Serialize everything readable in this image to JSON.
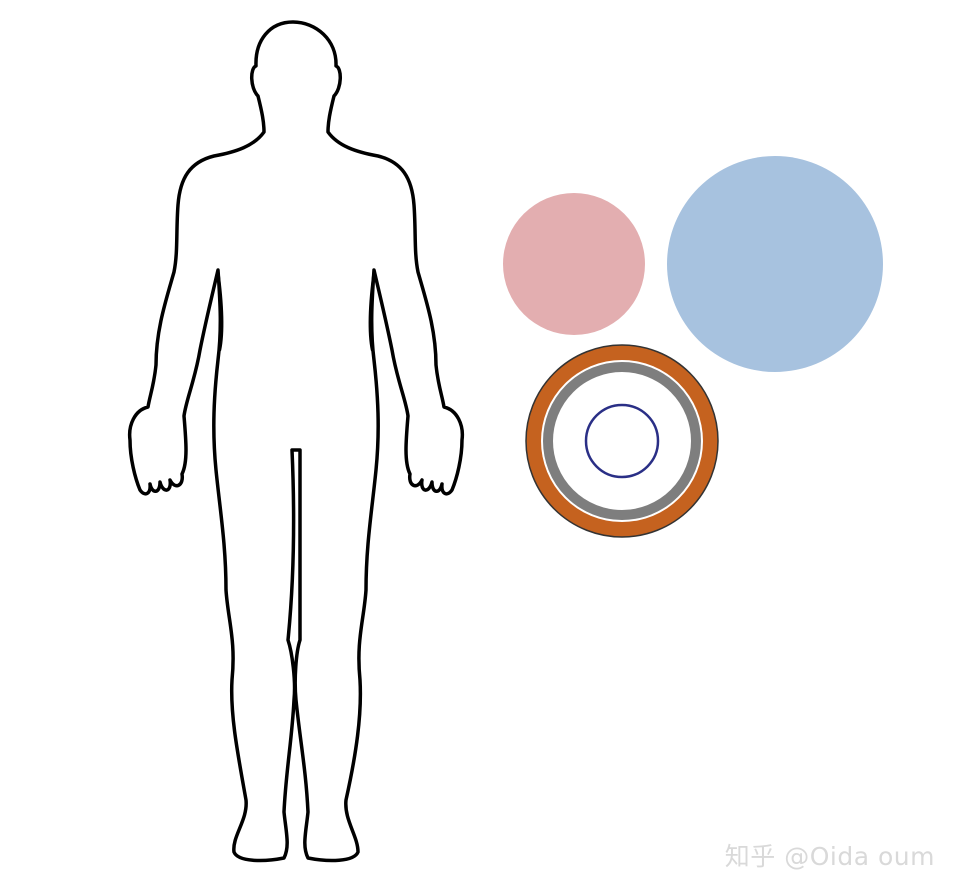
{
  "watermark": {
    "text": "知乎 @Oida oum"
  },
  "figure": {
    "outline_color": "#000000",
    "circles": {
      "pink": {
        "color": "#e3aeb0"
      },
      "blue": {
        "color": "#a7c2df"
      },
      "target": {
        "outer_ring_color": "#c5621f",
        "middle_ring_color": "#7e7e7e",
        "inner_ring_color": "#2a2f86",
        "edge_color": "#333333"
      }
    }
  }
}
